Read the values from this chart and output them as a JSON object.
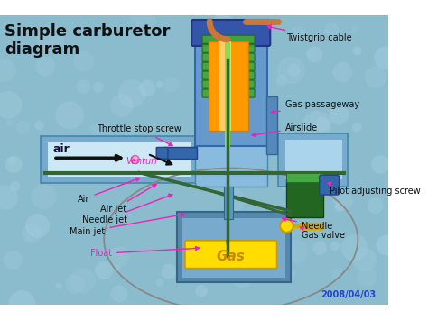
{
  "title": "Simple carburetor\ndiagram",
  "labels": {
    "twistgrip_cable": "Twistgrip cable",
    "gas_passageway": "Gas passageway",
    "airslide": "Airslide",
    "throttle_stop_screw": "Throttle stop screw",
    "venturi": "Venturi",
    "air": "air",
    "air_label": "Air",
    "air_jet": "Air jet",
    "needle_jet": "Needle jet",
    "main_jet": "Main jet",
    "float": "Float",
    "gas": "Gas",
    "pilot_adjusting_screw": "Pilot adjusting screw",
    "needle": "Needle",
    "gas_valve": "Gas valve"
  },
  "date_stamp": "2008/04/03",
  "colors": {
    "bg": "#8ab4cc",
    "bubble": "#9ec4d8",
    "body_blue": "#5599cc",
    "body_blue_light": "#77bbdd",
    "orange_slide": "#ff9900",
    "green_spring": "#44aa44",
    "dark_green": "#336633",
    "light_green": "#88cc44",
    "yellow_float": "#ffdd00",
    "blue_top_cap": "#3366bb",
    "blue_side": "#6699cc",
    "white_area": "#d8eef8",
    "date_color": "#2244cc",
    "pink": "#ee22bb",
    "black": "#111111",
    "blue_dark": "#336699",
    "green_dark2": "#225522"
  }
}
